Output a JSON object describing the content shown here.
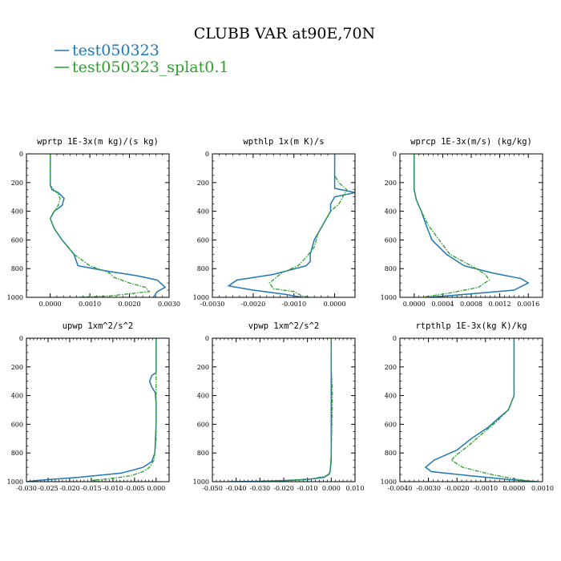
{
  "figure": {
    "title": "CLUBB VAR at90E,70N",
    "legend": [
      {
        "label": "test050323",
        "color": "#1f77b4"
      },
      {
        "label": "test050323_splat0.1",
        "color": "#2ca02c"
      }
    ]
  },
  "chart_data": [
    {
      "type": "line",
      "title": "wprtp  1E-3x(m kg)/(s kg)",
      "xlim": [
        -0.0006,
        0.003
      ],
      "ylim": [
        0,
        1000
      ],
      "y_inverted": true,
      "xticks": [
        0,
        0.001,
        0.002,
        0.003
      ],
      "xtick_labels": [
        "0.0000",
        "0.0010",
        "0.0020",
        "0.0030"
      ],
      "yticks": [
        0,
        200,
        400,
        600,
        800,
        1000
      ],
      "ytick_labels": [
        "0",
        "200",
        "400",
        "600",
        "800",
        "1000"
      ],
      "series": [
        {
          "name": "test050323",
          "x": [
            0.0,
            0.0,
            0.0,
            5e-05,
            0.0002,
            0.00035,
            0.0003,
            0.0001,
            0.0,
            0.0001,
            0.0003,
            0.0006,
            0.0007,
            0.0015,
            0.0022,
            0.0027,
            0.0029,
            0.0027,
            0.0026
          ],
          "y": [
            0,
            150,
            220,
            250,
            270,
            310,
            360,
            400,
            450,
            520,
            600,
            700,
            780,
            820,
            850,
            880,
            930,
            960,
            1000
          ]
        },
        {
          "name": "test050323_splat0.1",
          "x": [
            0.0,
            0.0,
            0.0,
            0.0001,
            0.0002,
            0.00025,
            0.0002,
            0.0001,
            0.0,
            0.0001,
            0.0003,
            0.0006,
            0.001,
            0.0015,
            0.0016,
            0.002,
            0.0024,
            0.0025,
            0.0015,
            0.0007
          ],
          "y": [
            0,
            150,
            220,
            250,
            280,
            310,
            360,
            400,
            450,
            520,
            600,
            700,
            780,
            830,
            860,
            900,
            930,
            960,
            990,
            1000
          ]
        }
      ]
    },
    {
      "type": "line",
      "title": "wpthlp  1x(m K)/s",
      "xlim": [
        -0.003,
        0.0005
      ],
      "ylim": [
        0,
        1000
      ],
      "y_inverted": true,
      "xticks": [
        -0.003,
        -0.002,
        -0.001,
        0
      ],
      "xtick_labels": [
        "-0.0030",
        "-0.0020",
        "-0.0010",
        "0.0000"
      ],
      "yticks": [
        0,
        200,
        400,
        600,
        800,
        1000
      ],
      "ytick_labels": [
        "0",
        "200",
        "400",
        "600",
        "800",
        "1000"
      ],
      "series": [
        {
          "name": "test050323",
          "x": [
            0.0,
            0.0,
            0.0,
            0.0005,
            0.0,
            -0.0001,
            -0.0001,
            -0.0003,
            -0.0005,
            -0.0006,
            -0.0006,
            -0.0007,
            -0.0015,
            -0.0024,
            -0.0026,
            -0.002,
            -0.0012,
            -0.0008
          ],
          "y": [
            0,
            150,
            240,
            270,
            300,
            350,
            400,
            500,
            600,
            700,
            750,
            780,
            840,
            880,
            920,
            950,
            980,
            1000
          ]
        },
        {
          "name": "test050323_splat0.1",
          "x": [
            0.0,
            0.0,
            0.0001,
            0.0003,
            0.0002,
            0.0001,
            -0.0001,
            -0.0004,
            -0.0005,
            -0.0007,
            -0.0009,
            -0.0013,
            -0.0016,
            -0.0015,
            -0.001,
            -0.0008,
            -0.0006
          ],
          "y": [
            0,
            150,
            200,
            250,
            300,
            350,
            400,
            550,
            650,
            720,
            780,
            830,
            900,
            940,
            960,
            990,
            1000
          ]
        }
      ]
    },
    {
      "type": "line",
      "title": "wprcp  1E-3x(m/s) (kg/kg)",
      "xlim": [
        -0.0002,
        0.0018
      ],
      "ylim": [
        0,
        1000
      ],
      "y_inverted": true,
      "xticks": [
        0,
        0.0004,
        0.0008,
        0.0012,
        0.0016
      ],
      "xtick_labels": [
        "0.0000",
        "0.0004",
        "0.0008",
        "0.0012",
        "0.0016"
      ],
      "yticks": [
        0,
        200,
        400,
        600,
        800,
        1000
      ],
      "ytick_labels": [
        "0",
        "200",
        "400",
        "600",
        "800",
        "1000"
      ],
      "series": [
        {
          "name": "test050323",
          "x": [
            0.0,
            0.0,
            0.0,
            3e-05,
            0.0001,
            0.00017,
            0.00025,
            0.00045,
            0.0007,
            0.0011,
            0.0015,
            0.0016,
            0.0014,
            0.0007,
            0.0002
          ],
          "y": [
            0,
            150,
            250,
            320,
            400,
            500,
            600,
            700,
            780,
            830,
            870,
            900,
            950,
            980,
            1000
          ]
        },
        {
          "name": "test050323_splat0.1",
          "x": [
            0.0,
            0.0,
            0.0,
            3e-05,
            0.0001,
            0.0002,
            0.00035,
            0.0005,
            0.0008,
            0.001,
            0.00105,
            0.0009,
            0.0005,
            0.0001
          ],
          "y": [
            0,
            150,
            250,
            320,
            400,
            500,
            600,
            700,
            780,
            840,
            880,
            930,
            970,
            1000
          ]
        }
      ]
    },
    {
      "type": "line",
      "title": "upwp  1xm^2/s^2",
      "xlim": [
        -0.03,
        0.003
      ],
      "ylim": [
        0,
        1000
      ],
      "y_inverted": true,
      "xticks": [
        -0.03,
        -0.025,
        -0.02,
        -0.015,
        -0.01,
        -0.005,
        0
      ],
      "xtick_labels": [
        "-0.030",
        "-0.025",
        "-0.020",
        "-0.015",
        "-0.010",
        "-0.005",
        "0.000"
      ],
      "yticks": [
        0,
        200,
        400,
        600,
        800,
        1000
      ],
      "ytick_labels": [
        "0",
        "200",
        "400",
        "600",
        "800",
        "1000"
      ],
      "series": [
        {
          "name": "test050323",
          "x": [
            0.0,
            0.0,
            0.0,
            -0.001,
            -0.0015,
            -0.001,
            -0.0002,
            0.0,
            0.0,
            -0.0003,
            -0.001,
            -0.003,
            -0.008,
            -0.018,
            -0.027,
            -0.03
          ],
          "y": [
            0,
            200,
            240,
            260,
            300,
            340,
            380,
            450,
            600,
            800,
            860,
            900,
            940,
            970,
            990,
            1000
          ]
        },
        {
          "name": "test050323_splat0.1",
          "x": [
            0.0,
            0.0,
            0.0,
            0.0,
            0.0,
            -0.0005,
            -0.0015,
            -0.003,
            -0.006,
            -0.011,
            -0.015,
            -0.013
          ],
          "y": [
            0,
            200,
            300,
            500,
            700,
            850,
            900,
            930,
            960,
            980,
            990,
            1000
          ]
        }
      ]
    },
    {
      "type": "line",
      "title": "vpwp  1xm^2/s^2",
      "xlim": [
        -0.05,
        0.01
      ],
      "ylim": [
        0,
        1000
      ],
      "y_inverted": true,
      "xticks": [
        -0.05,
        -0.04,
        -0.03,
        -0.02,
        -0.01,
        0,
        0.01
      ],
      "xtick_labels": [
        "-0.050",
        "-0.040",
        "-0.030",
        "-0.020",
        "-0.010",
        "0.000",
        "0.010"
      ],
      "yticks": [
        0,
        200,
        400,
        600,
        800,
        1000
      ],
      "ytick_labels": [
        "0",
        "200",
        "400",
        "600",
        "800",
        "1000"
      ],
      "series": [
        {
          "name": "test050323",
          "x": [
            0.0,
            0.0,
            0.0,
            0.0,
            -0.0005,
            -0.001,
            -0.003,
            -0.01,
            -0.02,
            -0.03,
            -0.043
          ],
          "y": [
            0,
            300,
            600,
            850,
            930,
            950,
            970,
            985,
            993,
            997,
            1000
          ]
        },
        {
          "name": "test050323_splat0.1",
          "x": [
            0.0,
            0.0,
            0.0005,
            0.0,
            -0.0005,
            -0.002,
            -0.008,
            -0.018,
            -0.025,
            -0.028
          ],
          "y": [
            0,
            200,
            400,
            800,
            930,
            960,
            980,
            990,
            995,
            1000
          ]
        }
      ]
    },
    {
      "type": "line",
      "title": "rtpthlp  1E-3x(kg K)/kg",
      "xlim": [
        -0.004,
        0.001
      ],
      "ylim": [
        0,
        1000
      ],
      "y_inverted": true,
      "xticks": [
        -0.004,
        -0.003,
        -0.002,
        -0.001,
        0,
        0.001
      ],
      "xtick_labels": [
        "-0.0040",
        "-0.0030",
        "-0.0020",
        "-0.0010",
        "0.0000",
        "0.0010"
      ],
      "yticks": [
        0,
        200,
        400,
        600,
        800,
        1000
      ],
      "ytick_labels": [
        "0",
        "200",
        "400",
        "600",
        "800",
        "1000"
      ],
      "series": [
        {
          "name": "test050323",
          "x": [
            0.0,
            0.0,
            -0.0002,
            -0.0005,
            -0.0009,
            -0.0015,
            -0.002,
            -0.0028,
            -0.0031,
            -0.0029,
            -0.0015,
            -0.0002,
            0.0008
          ],
          "y": [
            0,
            400,
            500,
            550,
            620,
            700,
            780,
            850,
            900,
            930,
            960,
            985,
            1000
          ]
        },
        {
          "name": "test050323_splat0.1",
          "x": [
            0.0,
            0.0,
            -0.0002,
            -0.0006,
            -0.0012,
            -0.0016,
            -0.002,
            -0.0022,
            -0.0018,
            -0.0008,
            0.0,
            0.0007
          ],
          "y": [
            0,
            400,
            500,
            580,
            680,
            750,
            810,
            850,
            900,
            950,
            980,
            1000
          ]
        }
      ]
    }
  ]
}
